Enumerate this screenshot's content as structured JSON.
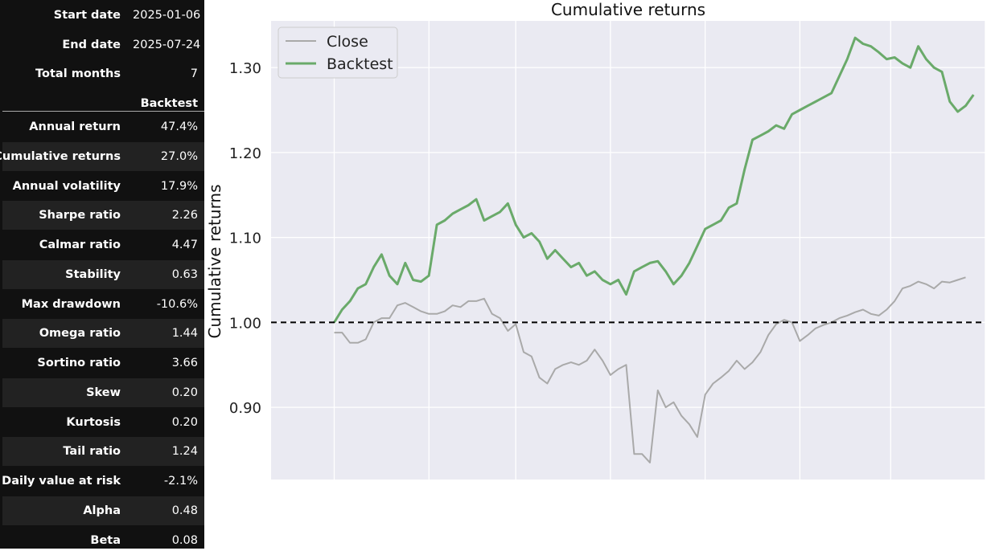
{
  "stats_table": {
    "header_rows": [
      {
        "label": "Start date",
        "value": "2025-01-06"
      },
      {
        "label": "End date",
        "value": "2025-07-24"
      },
      {
        "label": "Total months",
        "value": "7"
      }
    ],
    "column_header": "Backtest",
    "metrics": [
      {
        "label": "Annual return",
        "value": "47.4%"
      },
      {
        "label": "Cumulative returns",
        "value": "27.0%"
      },
      {
        "label": "Annual volatility",
        "value": "17.9%"
      },
      {
        "label": "Sharpe ratio",
        "value": "2.26"
      },
      {
        "label": "Calmar ratio",
        "value": "4.47"
      },
      {
        "label": "Stability",
        "value": "0.63"
      },
      {
        "label": "Max drawdown",
        "value": "-10.6%"
      },
      {
        "label": "Omega ratio",
        "value": "1.44"
      },
      {
        "label": "Sortino ratio",
        "value": "3.66"
      },
      {
        "label": "Skew",
        "value": "0.20"
      },
      {
        "label": "Kurtosis",
        "value": "0.20"
      },
      {
        "label": "Tail ratio",
        "value": "1.24"
      },
      {
        "label": "Daily value at risk",
        "value": "-2.1%"
      },
      {
        "label": "Alpha",
        "value": "0.48"
      },
      {
        "label": "Beta",
        "value": "0.08"
      }
    ]
  },
  "chart_data": {
    "type": "line",
    "title": "Cumulative returns",
    "ylabel": "Cumulative returns",
    "xlabel": "",
    "ylim": [
      0.815,
      1.355
    ],
    "x_range": [
      -16,
      165
    ],
    "yticks": [
      0.9,
      1.0,
      1.1,
      1.2,
      1.3
    ],
    "ytick_labels": [
      "0.90",
      "1.00",
      "1.10",
      "1.20",
      "1.30"
    ],
    "xgrid_positions": [
      0,
      24,
      46,
      70,
      94,
      118,
      141,
      165
    ],
    "reference_line": 1.0,
    "legend_position": "top-left",
    "grid": true,
    "colors": {
      "plot_bg": "#eaeaf2",
      "grid": "#ffffff",
      "Close": "#a9a9a9",
      "Backtest": "#6aaa6a",
      "reference": "#000000"
    },
    "series": [
      {
        "name": "Close",
        "x": [
          0,
          2,
          4,
          6,
          8,
          10,
          12,
          14,
          16,
          18,
          20,
          22,
          24,
          26,
          28,
          30,
          32,
          34,
          36,
          38,
          40,
          42,
          44,
          46,
          48,
          50,
          52,
          54,
          56,
          58,
          60,
          62,
          64,
          66,
          68,
          70,
          72,
          74,
          76,
          78,
          80,
          82,
          84,
          86,
          88,
          90,
          92,
          94,
          96,
          98,
          100,
          102,
          104,
          106,
          108,
          110,
          112,
          114,
          116,
          118,
          120,
          122,
          124,
          126,
          128,
          130,
          132,
          134,
          136,
          138,
          140,
          142,
          144,
          146,
          148,
          150,
          152,
          154,
          156,
          158,
          160
        ],
        "y": [
          0.988,
          0.988,
          0.976,
          0.976,
          0.98,
          1.0,
          1.005,
          1.005,
          1.02,
          1.023,
          1.018,
          1.013,
          1.01,
          1.01,
          1.013,
          1.02,
          1.018,
          1.025,
          1.025,
          1.028,
          1.01,
          1.005,
          0.99,
          0.998,
          0.965,
          0.96,
          0.935,
          0.928,
          0.945,
          0.95,
          0.953,
          0.95,
          0.955,
          0.968,
          0.955,
          0.938,
          0.945,
          0.95,
          0.845,
          0.845,
          0.835,
          0.92,
          0.9,
          0.906,
          0.89,
          0.88,
          0.865,
          0.915,
          0.928,
          0.935,
          0.943,
          0.955,
          0.945,
          0.953,
          0.965,
          0.985,
          0.998,
          1.003,
          1.0,
          0.978,
          0.985,
          0.993,
          0.997,
          1.0,
          1.005,
          1.008,
          1.012,
          1.015,
          1.01,
          1.008,
          1.015,
          1.025,
          1.04,
          1.043,
          1.048,
          1.045,
          1.04,
          1.048,
          1.047,
          1.05,
          1.053
        ]
      },
      {
        "name": "Backtest",
        "x": [
          0,
          2,
          4,
          6,
          8,
          10,
          12,
          14,
          16,
          18,
          20,
          22,
          24,
          26,
          28,
          30,
          32,
          34,
          36,
          38,
          40,
          42,
          44,
          46,
          48,
          50,
          52,
          54,
          56,
          58,
          60,
          62,
          64,
          66,
          68,
          70,
          72,
          74,
          76,
          78,
          80,
          82,
          84,
          86,
          88,
          90,
          92,
          94,
          96,
          98,
          100,
          102,
          104,
          106,
          108,
          110,
          112,
          114,
          116,
          118,
          120,
          122,
          124,
          126,
          128,
          130,
          132,
          134,
          136,
          138,
          140,
          142,
          144,
          146,
          148,
          150,
          152,
          154,
          156,
          158,
          160,
          162
        ],
        "y": [
          1.0,
          1.015,
          1.025,
          1.04,
          1.045,
          1.065,
          1.08,
          1.055,
          1.045,
          1.07,
          1.05,
          1.048,
          1.055,
          1.115,
          1.12,
          1.128,
          1.133,
          1.138,
          1.145,
          1.12,
          1.125,
          1.13,
          1.14,
          1.115,
          1.1,
          1.105,
          1.095,
          1.075,
          1.085,
          1.075,
          1.065,
          1.07,
          1.055,
          1.06,
          1.05,
          1.045,
          1.05,
          1.033,
          1.06,
          1.065,
          1.07,
          1.072,
          1.06,
          1.045,
          1.055,
          1.07,
          1.09,
          1.11,
          1.115,
          1.12,
          1.135,
          1.14,
          1.18,
          1.215,
          1.22,
          1.225,
          1.232,
          1.228,
          1.245,
          1.25,
          1.255,
          1.26,
          1.265,
          1.27,
          1.29,
          1.31,
          1.335,
          1.328,
          1.325,
          1.318,
          1.31,
          1.312,
          1.305,
          1.3,
          1.325,
          1.31,
          1.3,
          1.295,
          1.26,
          1.248,
          1.255,
          1.268
        ]
      }
    ]
  }
}
